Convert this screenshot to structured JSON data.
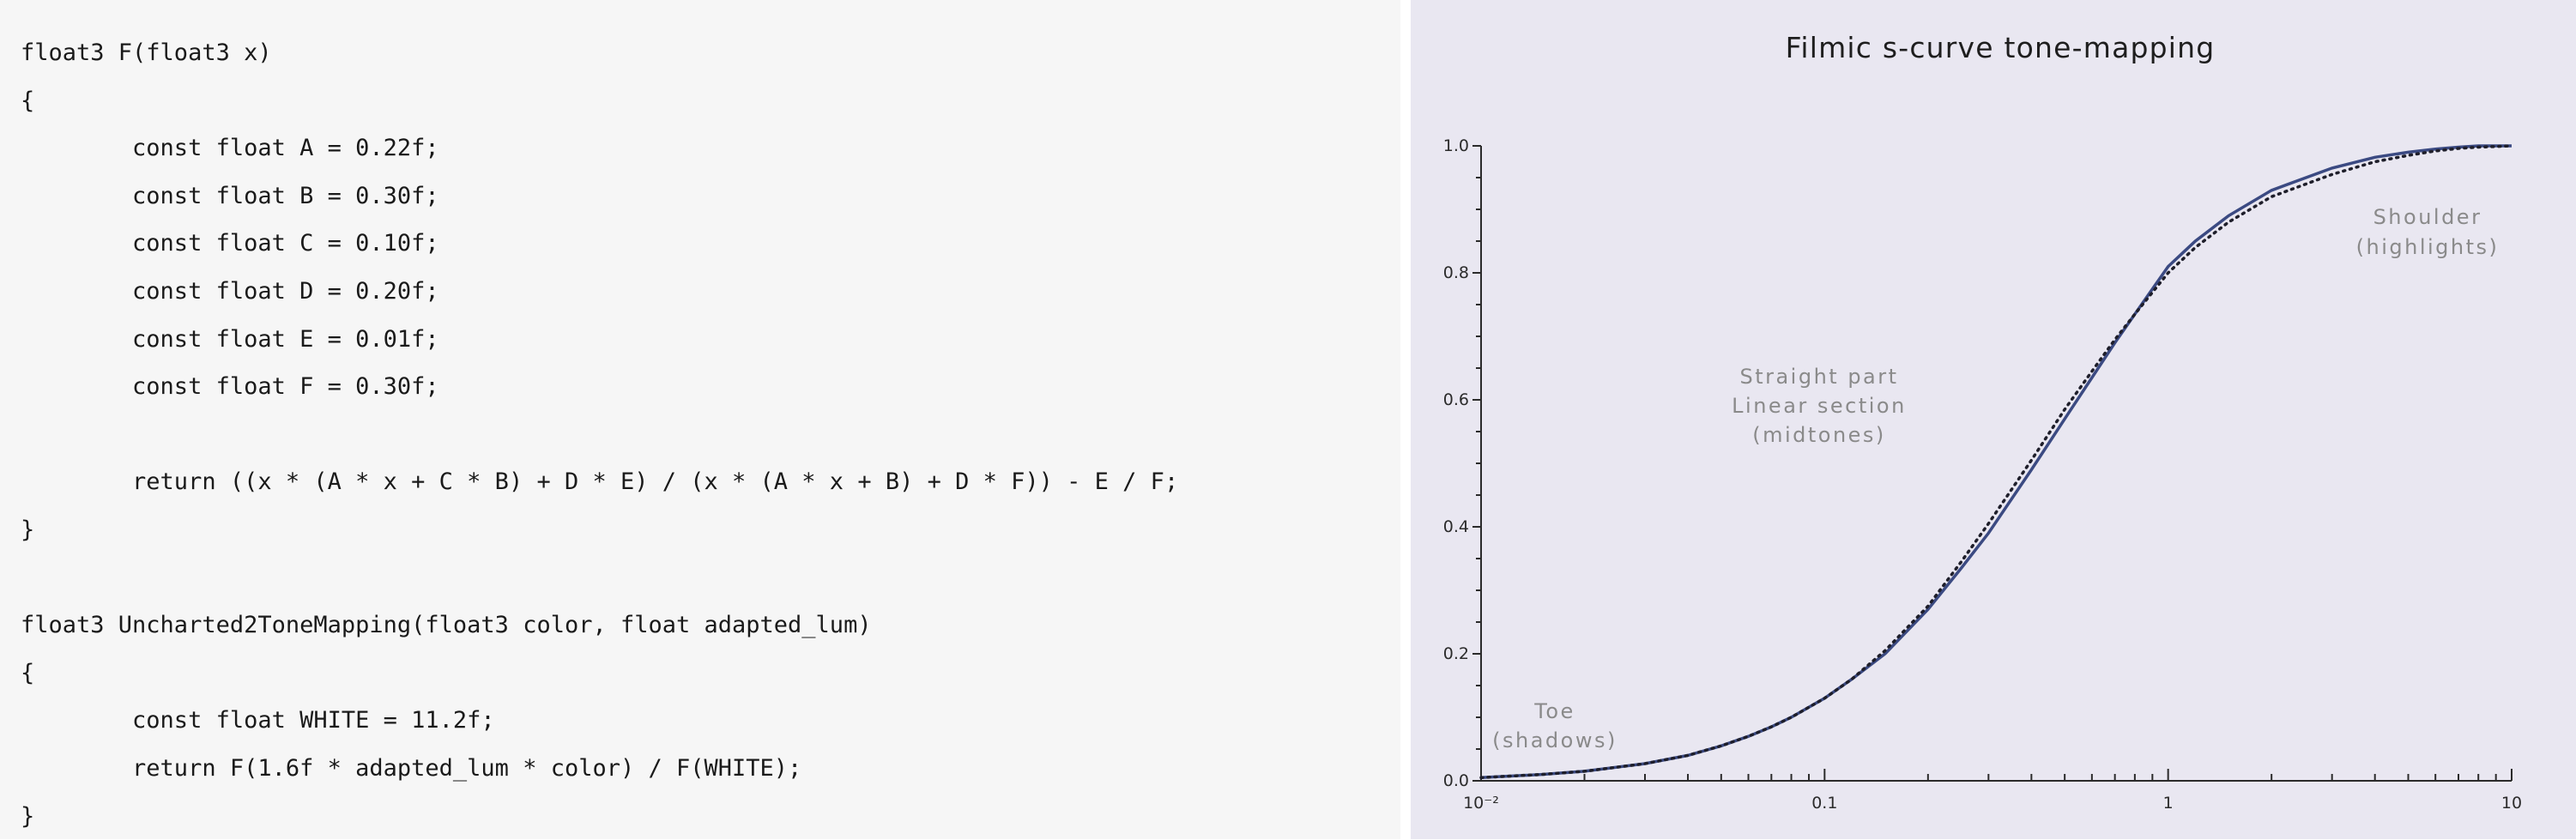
{
  "code": {
    "lines": [
      "float3 F(float3 x)",
      "{",
      "        const float A = 0.22f;",
      "        const float B = 0.30f;",
      "        const float C = 0.10f;",
      "        const float D = 0.20f;",
      "        const float E = 0.01f;",
      "        const float F = 0.30f;",
      "",
      "        return ((x * (A * x + C * B) + D * E) / (x * (A * x + B) + D * F)) - E / F;",
      "}",
      "",
      "float3 Uncharted2ToneMapping(float3 color, float adapted_lum)",
      "{",
      "        const float WHITE = 11.2f;",
      "        return F(1.6f * adapted_lum * color) / F(WHITE);",
      "}"
    ]
  },
  "chart_data": {
    "type": "line",
    "title": "Filmic s-curve tone-mapping",
    "xscale": "log",
    "xlim": [
      0.01,
      10
    ],
    "ylim": [
      0.0,
      1.0
    ],
    "x_ticks": [
      "10⁻²",
      "0.1",
      "1",
      "10"
    ],
    "y_ticks": [
      "0.0",
      "0.2",
      "0.4",
      "0.6",
      "0.8",
      "1.0"
    ],
    "grid": false,
    "legend": "none",
    "series": [
      {
        "style": "solid",
        "color": "#3b4a82",
        "x": [
          0.01,
          0.015,
          0.02,
          0.03,
          0.04,
          0.05,
          0.06,
          0.07,
          0.08,
          0.1,
          0.12,
          0.15,
          0.2,
          0.25,
          0.3,
          0.4,
          0.5,
          0.6,
          0.7,
          0.8,
          1.0,
          1.2,
          1.5,
          2,
          3,
          4,
          5,
          6,
          7,
          8,
          10
        ],
        "y": [
          0.005,
          0.01,
          0.015,
          0.027,
          0.04,
          0.055,
          0.07,
          0.085,
          0.1,
          0.13,
          0.16,
          0.2,
          0.27,
          0.335,
          0.39,
          0.49,
          0.57,
          0.635,
          0.69,
          0.735,
          0.81,
          0.85,
          0.89,
          0.93,
          0.965,
          0.982,
          0.99,
          0.995,
          0.998,
          1.0,
          1.0
        ]
      },
      {
        "style": "dotted",
        "color": "#1e1e2a",
        "x": [
          0.01,
          0.015,
          0.02,
          0.03,
          0.04,
          0.05,
          0.06,
          0.07,
          0.08,
          0.1,
          0.12,
          0.15,
          0.2,
          0.25,
          0.3,
          0.4,
          0.5,
          0.6,
          0.7,
          0.8,
          1.0,
          1.2,
          1.5,
          2,
          3,
          4,
          5,
          6,
          7,
          8,
          10
        ],
        "y": [
          0.005,
          0.01,
          0.015,
          0.027,
          0.04,
          0.055,
          0.07,
          0.085,
          0.1,
          0.13,
          0.16,
          0.205,
          0.275,
          0.345,
          0.405,
          0.505,
          0.585,
          0.645,
          0.695,
          0.735,
          0.8,
          0.84,
          0.88,
          0.92,
          0.955,
          0.975,
          0.985,
          0.992,
          0.996,
          0.998,
          1.0
        ]
      }
    ],
    "annotations": {
      "shoulder": [
        "Shoulder",
        "(highlights)"
      ],
      "straight": [
        "Straight part",
        "Linear section",
        "(midtones)"
      ],
      "toe": [
        "Toe",
        "(shadows)"
      ]
    }
  }
}
